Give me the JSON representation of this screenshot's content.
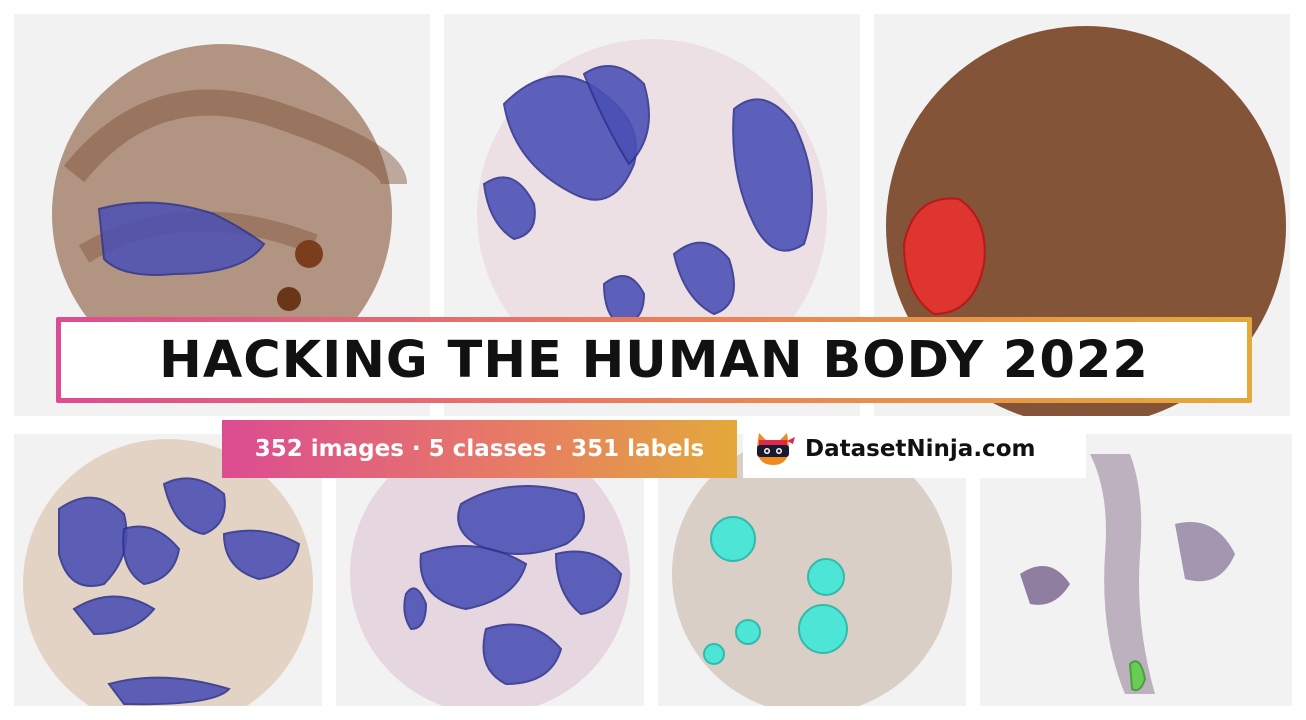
{
  "banner": {
    "title": "HACKING THE HUMAN BODY 2022",
    "stats": "352 images · 5 classes · 351 labels",
    "brand": "DatasetNinja.com",
    "logo_icon": "ninja-cat-logo-icon"
  },
  "colors": {
    "gradient_start": "#dc4c92",
    "gradient_end": "#e3a93a",
    "mask_blue": "#4a4fb5",
    "mask_red": "#f03030",
    "mask_cyan": "#3ee8d8",
    "mask_green": "#5fcf4a",
    "tissue_brown": "#8b5a3c",
    "tissue_pink": "#e8d8e0"
  }
}
